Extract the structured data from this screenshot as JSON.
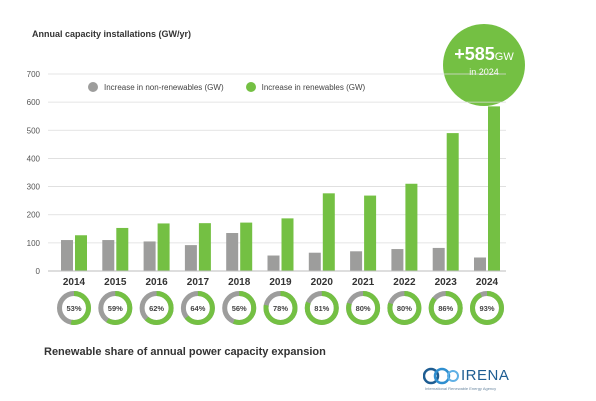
{
  "chart_data": {
    "type": "bar",
    "ylabel": "Annual capacity installations (GW/yr)",
    "ylim": [
      0,
      700
    ],
    "yticks": [
      0,
      100,
      200,
      300,
      400,
      500,
      600,
      700
    ],
    "grid": true,
    "legend_position": "top-left",
    "categories": [
      "2014",
      "2015",
      "2016",
      "2017",
      "2018",
      "2019",
      "2020",
      "2021",
      "2022",
      "2023",
      "2024"
    ],
    "series": [
      {
        "name": "Increase in non-renewables (GW)",
        "color": "#9d9d9c",
        "values": [
          110,
          110,
          105,
          92,
          135,
          55,
          65,
          70,
          78,
          82,
          48
        ]
      },
      {
        "name": "Increase in renewables (GW)",
        "color": "#74c043",
        "values": [
          127,
          153,
          169,
          170,
          172,
          187,
          276,
          268,
          310,
          490,
          585
        ]
      }
    ],
    "renewable_share": {
      "labels": [
        "53%",
        "59%",
        "62%",
        "64%",
        "56%",
        "78%",
        "81%",
        "80%",
        "80%",
        "86%",
        "93%"
      ],
      "values": [
        53,
        59,
        62,
        64,
        56,
        78,
        81,
        80,
        80,
        86,
        93
      ],
      "color_renewable": "#74c043",
      "color_nonrenewable": "#9d9d9c"
    },
    "subtitle": "Renewable share of annual power capacity expansion"
  },
  "badge": {
    "value": "+585",
    "unit": "GW",
    "text": "in 2024",
    "color": "#74c043"
  },
  "logo": {
    "text": "IRENA",
    "subtext": "International Renewable Energy Agency"
  }
}
